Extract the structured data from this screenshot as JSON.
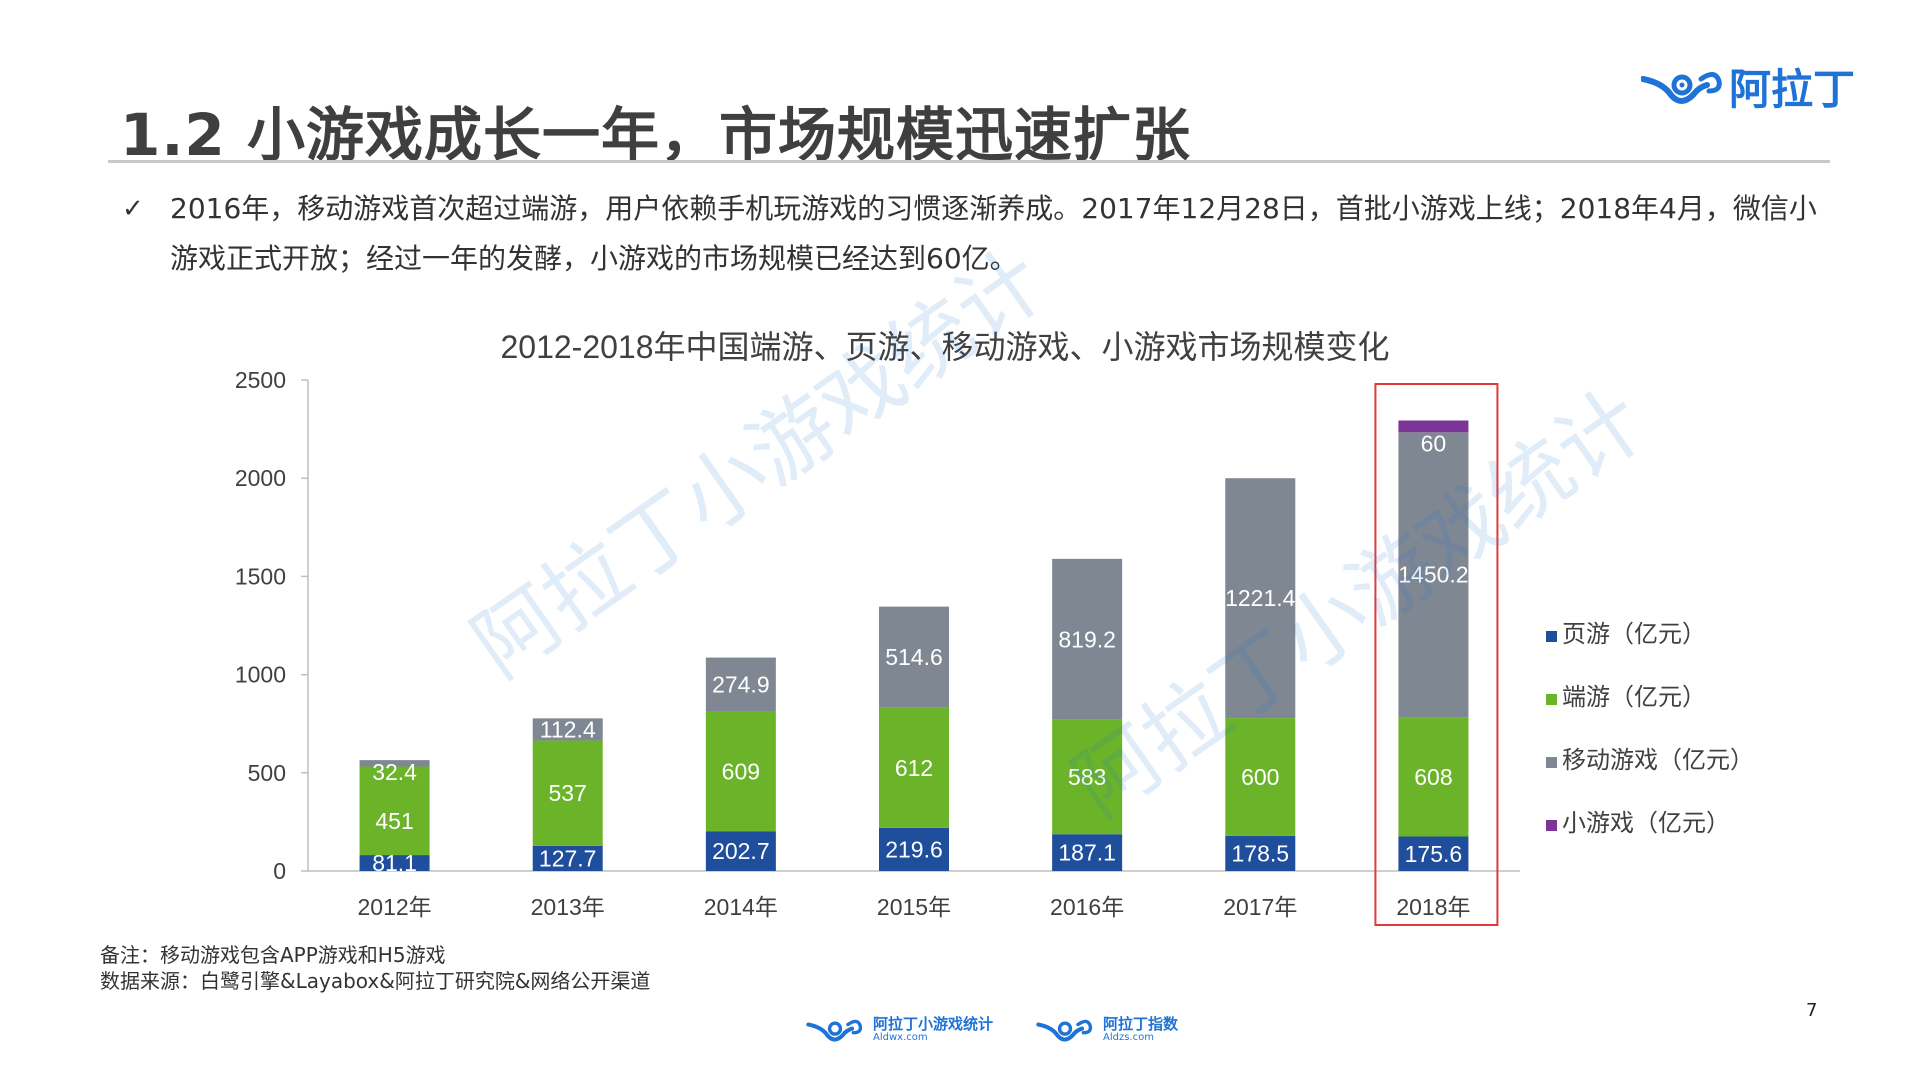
{
  "slide": {
    "title": "1.2 小游戏成长一年，市场规模迅速扩张",
    "brand_logo_text": "阿拉丁",
    "bullet_check": "✓",
    "bullet_text": "2016年，移动游戏首次超过端游，用户依赖手机玩游戏的习惯逐渐养成。2017年12月28日，首批小游戏上线；2018年4月，微信小游戏正式开放；经过一年的发酵，小游戏的市场规模已经达到60亿。",
    "notes": [
      "备注：移动游戏包含APP游戏和H5游戏",
      "数据来源：白鹭引擎&Layabox&阿拉丁研究院&网络公开渠道"
    ],
    "page_number": "7",
    "watermark_text": "阿拉丁小游戏统计",
    "footer_logos": [
      {
        "main": "阿拉丁小游戏统计",
        "sub": "Aldwx.com"
      },
      {
        "main": "阿拉丁指数",
        "sub": "Aldzs.com"
      }
    ]
  },
  "colors": {
    "brand": "#1f73d6",
    "page_game": "#1f4e9c",
    "pc_game": "#6bb42a",
    "mobile_game": "#7f8792",
    "mini_game": "#7b3596",
    "highlight": "#e23a3a"
  },
  "chart_data": {
    "type": "bar",
    "stacked": true,
    "title": "2012-2018年中国端游、页游、移动游戏、小游戏市场规模变化",
    "xlabel": "",
    "ylabel": "",
    "categories": [
      "2012年",
      "2013年",
      "2014年",
      "2015年",
      "2016年",
      "2017年",
      "2018年"
    ],
    "ylim": [
      0,
      2500
    ],
    "yticks": [
      0,
      500,
      1000,
      1500,
      2000,
      2500
    ],
    "grid": false,
    "legend_position": "right",
    "highlight_category": "2018年",
    "series": [
      {
        "name": "页游（亿元）",
        "color": "#1f4e9c",
        "values": [
          81.1,
          127.7,
          202.7,
          219.6,
          187.1,
          178.5,
          175.6
        ]
      },
      {
        "name": "端游（亿元）",
        "color": "#6bb42a",
        "values": [
          451,
          537,
          609,
          612,
          583,
          600,
          608
        ]
      },
      {
        "name": "移动游戏（亿元）",
        "color": "#7f8792",
        "values": [
          32.4,
          112.4,
          274.9,
          514.6,
          819.2,
          1221.4,
          1450.2
        ]
      },
      {
        "name": "小游戏（亿元）",
        "color": "#7b3596",
        "values": [
          null,
          null,
          null,
          null,
          null,
          null,
          60
        ]
      }
    ]
  }
}
